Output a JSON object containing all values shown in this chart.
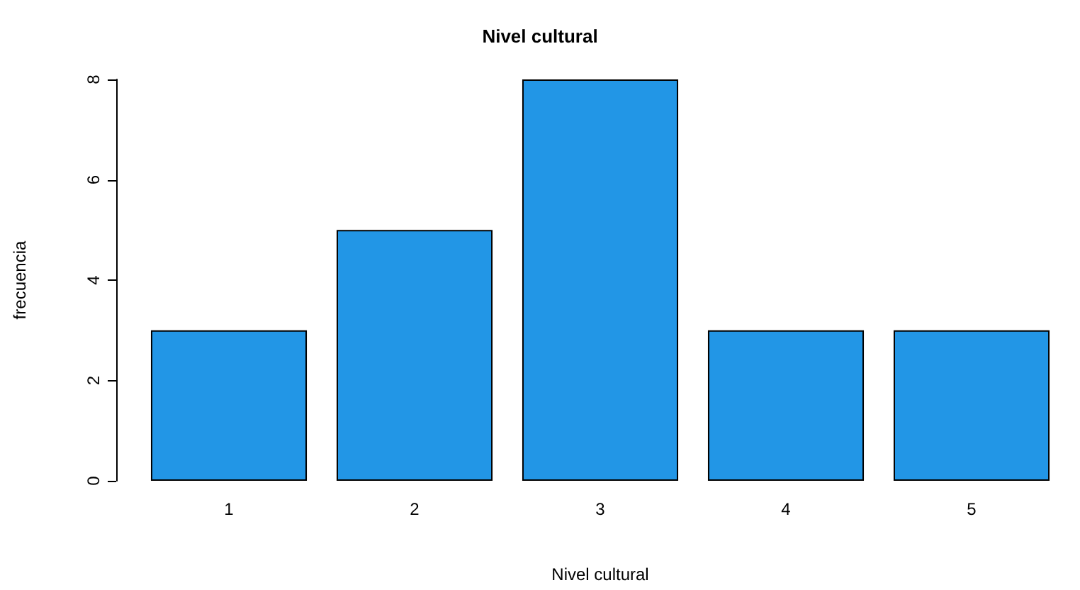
{
  "chart_data": {
    "type": "bar",
    "title": "Nivel cultural",
    "xlabel": "Nivel cultural",
    "ylabel": "frecuencia",
    "categories": [
      "1",
      "2",
      "3",
      "4",
      "5"
    ],
    "values": [
      3,
      5,
      8,
      3,
      3
    ],
    "color": "#2296e6",
    "ylim": [
      0,
      8
    ],
    "yticks": [
      0,
      2,
      4,
      6,
      8
    ],
    "grid": false
  }
}
